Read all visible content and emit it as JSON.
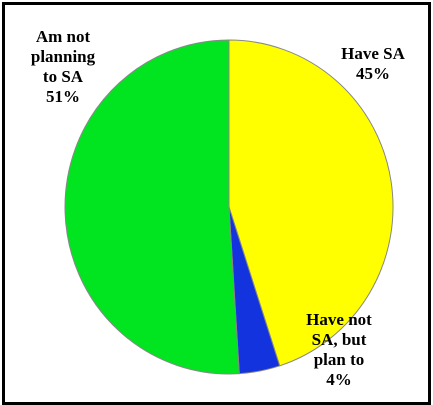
{
  "chart_data": {
    "type": "pie",
    "title": "",
    "slices": [
      {
        "label_lines": [
          "Have SA",
          "45%"
        ],
        "value": 45,
        "color": "#ffff00"
      },
      {
        "label_lines": [
          "Have not",
          "SA, but",
          "plan to",
          "4%"
        ],
        "value": 4,
        "color": "#1233dd"
      },
      {
        "label_lines": [
          "Am not",
          "planning",
          "to SA",
          "51%"
        ],
        "value": 51,
        "color": "#00e51f"
      }
    ],
    "start": "12 o'clock",
    "direction": "clockwise",
    "slice_border_color": "#888888",
    "legend": "none"
  }
}
